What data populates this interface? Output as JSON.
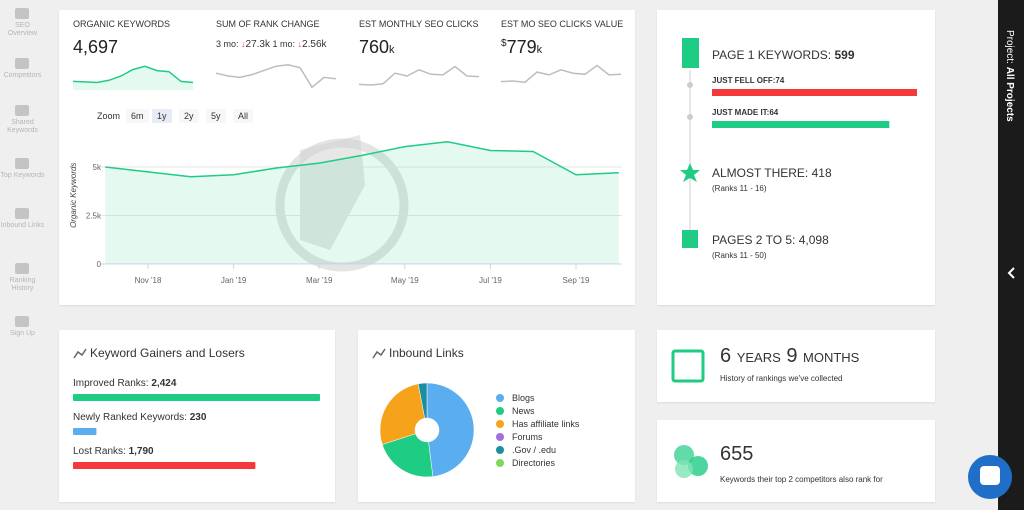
{
  "sidebar": {
    "items": [
      "SEO Overview",
      "Competitors",
      "Shared Keywords",
      "Top Keywords",
      "Inbound Links",
      "Ranking History",
      "Sign Up"
    ]
  },
  "right_panel": {
    "label": "Project:",
    "value": "All Projects"
  },
  "metrics": {
    "organic_keywords": {
      "title": "ORGANIC KEYWORDS",
      "value": "4,697"
    },
    "rank_change": {
      "title": "SUM OF RANK CHANGE",
      "three_month_label": "3 mo:",
      "three_month": "27.3k",
      "one_month_label": "1 mo:",
      "one_month": "2.56k"
    },
    "monthly_clicks": {
      "title": "EST MONTHLY SEO CLICKS",
      "value": "760",
      "unit": "k"
    },
    "clicks_value": {
      "title": "EST MO SEO CLICKS VALUE",
      "currency": "$",
      "value": "779",
      "unit": "k"
    }
  },
  "zoom": {
    "label": "Zoom",
    "options": [
      "6m",
      "1y",
      "2y",
      "5y",
      "All"
    ],
    "selected": 1
  },
  "page_one": {
    "title": "PAGE 1 KEYWORDS:",
    "count": "599",
    "fell_off": {
      "label": "JUST FELL OFF:",
      "value": 74,
      "color": "#f5393b"
    },
    "made_it": {
      "label": "JUST MADE IT:",
      "value": 64,
      "color": "#1fcc84"
    }
  },
  "almost_there": {
    "title": "ALMOST THERE:",
    "count": "418",
    "note": "(Ranks 11 - 16)"
  },
  "pages_two_five": {
    "title": "PAGES 2 TO 5:",
    "count": "4,098",
    "note": "(Ranks 11 - 50)"
  },
  "gainers": {
    "title": "Keyword Gainers and Losers",
    "items": [
      {
        "label": "Improved Ranks:",
        "value": 2424,
        "value_label": "2,424",
        "color": "#1fcc84"
      },
      {
        "label": "Newly Ranked Keywords:",
        "value": 230,
        "value_label": "230",
        "color": "#5aaef0"
      },
      {
        "label": "Lost Ranks:",
        "value": 1790,
        "value_label": "1,790",
        "color": "#f5393b"
      }
    ]
  },
  "history": {
    "years": "6",
    "years_label": "YEARS",
    "months": "9",
    "months_label": "MONTHS",
    "caption": "History of rankings we've collected"
  },
  "competitors": {
    "value": "655",
    "caption": "Keywords their top 2 competitors also rank for"
  },
  "chart_data": [
    {
      "type": "area",
      "y_label": "Organic Keywords",
      "categories": [
        null,
        "Nov '18",
        null,
        "Jan '19",
        null,
        "Mar '19",
        null,
        "May '19",
        null,
        "Jul '19",
        null,
        "Sep '19",
        null
      ],
      "values": [
        5000,
        4750,
        4500,
        4600,
        4950,
        5200,
        5600,
        6050,
        6300,
        5850,
        5800,
        4600,
        4700
      ],
      "ylim": [
        0,
        7500
      ],
      "yticks": [
        0,
        {
          "value": 2500,
          "label": "2.5k"
        },
        {
          "value": 5000,
          "label": "5k"
        }
      ],
      "grid": true,
      "color": "#1fcc84"
    },
    {
      "type": "pie",
      "title": "Inbound Links",
      "categories": [
        "Blogs",
        "News",
        "Has affiliate links",
        "Forums",
        ".Gov / .edu",
        "Directories"
      ],
      "values": [
        48,
        22,
        27,
        0,
        3,
        0
      ],
      "colors": [
        "#5aaef0",
        "#1fcc84",
        "#f7a21b",
        "#a070e0",
        "#1a8fa0",
        "#7ed957"
      ]
    },
    {
      "type": "area",
      "values": [
        4800,
        4750,
        4700,
        4900,
        5300,
        5900,
        6200,
        5800,
        5700,
        4800,
        4700
      ],
      "ylim": [
        4000,
        6600
      ],
      "color": "#1fcc84"
    },
    {
      "type": "line",
      "values": [
        0,
        -2,
        -3,
        -1,
        2,
        5,
        6,
        4,
        -10,
        -3,
        -4
      ],
      "ylim": [
        -12,
        8
      ],
      "color": "#bdbdbd"
    },
    {
      "type": "line",
      "values": [
        300,
        290,
        310,
        500,
        450,
        560,
        480,
        470,
        620,
        450,
        440
      ],
      "ylim": [
        200,
        700
      ],
      "color": "#bdbdbd"
    },
    {
      "type": "line",
      "values": [
        350,
        360,
        340,
        520,
        470,
        560,
        500,
        480,
        640,
        470,
        480
      ],
      "ylim": [
        200,
        700
      ],
      "color": "#bdbdbd"
    }
  ]
}
